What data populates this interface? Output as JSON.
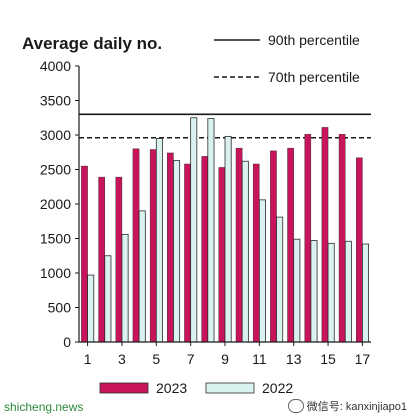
{
  "chart_data": {
    "type": "bar",
    "title": "Average daily no.",
    "categories": [
      "1",
      "2",
      "3",
      "4",
      "5",
      "6",
      "7",
      "8",
      "9",
      "10",
      "11",
      "12",
      "13",
      "14",
      "15",
      "16",
      "17"
    ],
    "x_tick_labels": [
      "1",
      "3",
      "5",
      "7",
      "9",
      "11",
      "13",
      "15",
      "17"
    ],
    "series": [
      {
        "name": "2023",
        "color": "#c8145a",
        "values": [
          2550,
          2390,
          2390,
          2800,
          2790,
          2740,
          2580,
          2690,
          2530,
          2810,
          2580,
          2770,
          2810,
          3010,
          3110,
          3010,
          2670
        ]
      },
      {
        "name": "2022",
        "color": "#d9f2ef",
        "values": [
          970,
          1250,
          1560,
          1900,
          2950,
          2630,
          3250,
          3240,
          2980,
          2620,
          2060,
          1810,
          1490,
          1470,
          1430,
          1460,
          1420
        ]
      }
    ],
    "reference_lines": [
      {
        "label": "90th percentile",
        "value": 3300,
        "style": "solid"
      },
      {
        "label": "70th percentile",
        "value": 2960,
        "style": "dashed"
      }
    ],
    "y_ticks": [
      0,
      500,
      1000,
      1500,
      2000,
      2500,
      3000,
      3500,
      4000
    ],
    "ylim": [
      0,
      4000
    ],
    "legend": "bottom",
    "grid": false
  },
  "watermarks": {
    "left": "shicheng.news",
    "right": "微信号: kanxinjiapo1"
  }
}
